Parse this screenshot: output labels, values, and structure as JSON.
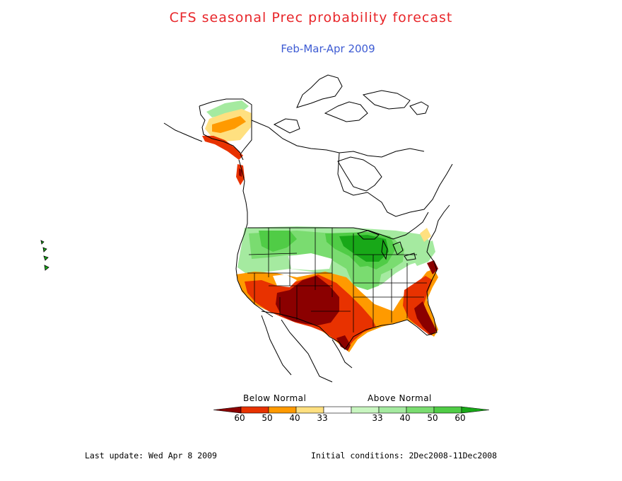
{
  "title": "CFS seasonal Prec probability forecast",
  "subtitle": "Feb-Mar-Apr 2009",
  "legend": {
    "below_label": "Below Normal",
    "above_label": "Above Normal",
    "bins": [
      {
        "label": "60",
        "color": "#8b0000"
      },
      {
        "label": "50",
        "color": "#e83200"
      },
      {
        "label": "40",
        "color": "#ff9a00"
      },
      {
        "label": "33",
        "color": "#ffe080"
      },
      {
        "label": "",
        "color": "#ffffff"
      },
      {
        "label": "33",
        "color": "#c8f5c0"
      },
      {
        "label": "40",
        "color": "#a5eaa0"
      },
      {
        "label": "50",
        "color": "#7adc70"
      },
      {
        "label": "60",
        "color": "#50cc46"
      },
      {
        "label": "",
        "color": "#18a818"
      }
    ]
  },
  "footer": {
    "last_update": "Last update: Wed Apr 8 2009",
    "initial_conditions": "Initial conditions: 2Dec2008-11Dec2008"
  },
  "colors": {
    "title": "#e8262a",
    "subtitle": "#3d5bd3",
    "below_60": "#8b0000",
    "below_50": "#e83200",
    "below_40": "#ff9a00",
    "below_33": "#ffe080",
    "above_33": "#c8f5c0",
    "above_40": "#a5eaa0",
    "above_50": "#7adc70",
    "above_60": "#18a818"
  }
}
